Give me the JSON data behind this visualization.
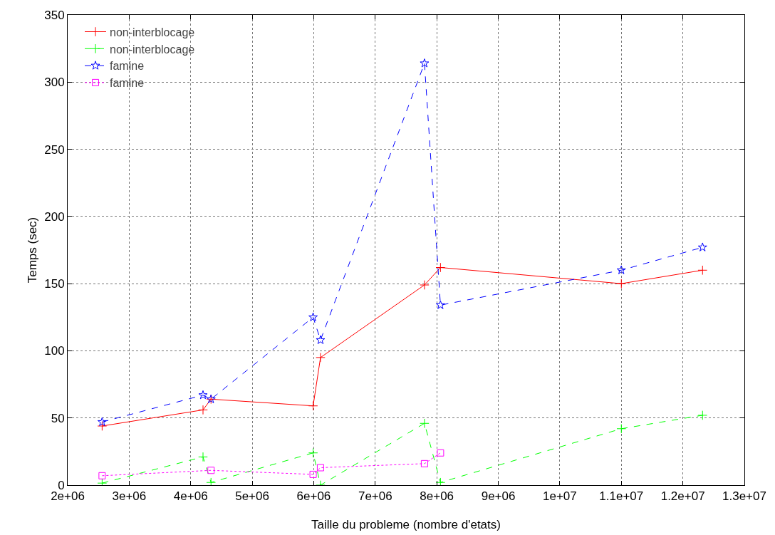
{
  "chart_data": {
    "type": "line",
    "xlabel": "Taille du probleme (nombre d'etats)",
    "ylabel": "Temps (sec)",
    "xlim": [
      2000000,
      13000000
    ],
    "xticks": [
      {
        "value": 2000000,
        "label": "2e+06"
      },
      {
        "value": 3000000,
        "label": "3e+06"
      },
      {
        "value": 4000000,
        "label": "4e+06"
      },
      {
        "value": 5000000,
        "label": "5e+06"
      },
      {
        "value": 6000000,
        "label": "6e+06"
      },
      {
        "value": 7000000,
        "label": "7e+06"
      },
      {
        "value": 8000000,
        "label": "8e+06"
      },
      {
        "value": 9000000,
        "label": "9e+06"
      },
      {
        "value": 10000000,
        "label": "1e+07"
      },
      {
        "value": 11000000,
        "label": "1.1e+07"
      },
      {
        "value": 12000000,
        "label": "1.2e+07"
      },
      {
        "value": 13000000,
        "label": "1.3e+07"
      }
    ],
    "ylim": [
      0,
      350
    ],
    "yticks": [
      0,
      50,
      100,
      150,
      200,
      250,
      300,
      350
    ],
    "grid": true,
    "legend": "top left",
    "series": [
      {
        "name": "non-interblocage",
        "color": "#ff0000",
        "marker": "cross",
        "line_style": "solid",
        "x": [
          2560000,
          4200000,
          4330000,
          5990000,
          6110000,
          7800000,
          8060000,
          11000000,
          12320000
        ],
        "values": [
          44,
          56,
          64,
          59,
          95,
          149,
          162,
          150,
          160
        ]
      },
      {
        "name": "non-interblocage",
        "color": "#00ff00",
        "marker": "cross",
        "line_style": "dashed",
        "x": [
          2560000,
          4200000,
          4330000,
          5990000,
          6110000,
          7800000,
          8060000,
          11000000,
          12320000
        ],
        "values": [
          1.5,
          21,
          2,
          24,
          0,
          46,
          2,
          42,
          52
        ]
      },
      {
        "name": "famine",
        "color": "#0000ff",
        "marker": "star",
        "line_style": "dashed",
        "x": [
          2560000,
          4200000,
          4330000,
          5990000,
          6110000,
          7800000,
          8060000,
          11000000,
          12320000
        ],
        "values": [
          47,
          67,
          64,
          125,
          108,
          314,
          134,
          160,
          177
        ]
      },
      {
        "name": "famine",
        "color": "#ff00ff",
        "marker": "square",
        "line_style": "dotted",
        "x": [
          2560000,
          4330000,
          5990000,
          6110000,
          7800000,
          8060000
        ],
        "values": [
          7,
          11,
          8,
          13,
          16,
          24
        ]
      }
    ]
  }
}
